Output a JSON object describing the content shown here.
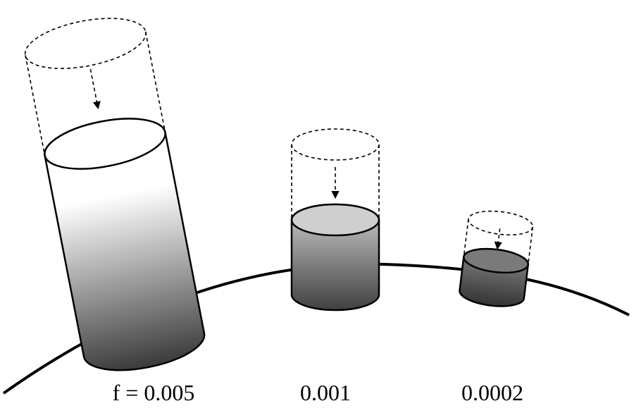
{
  "labels": [
    "f = 0.005",
    "0.001",
    "0.0002"
  ]
}
